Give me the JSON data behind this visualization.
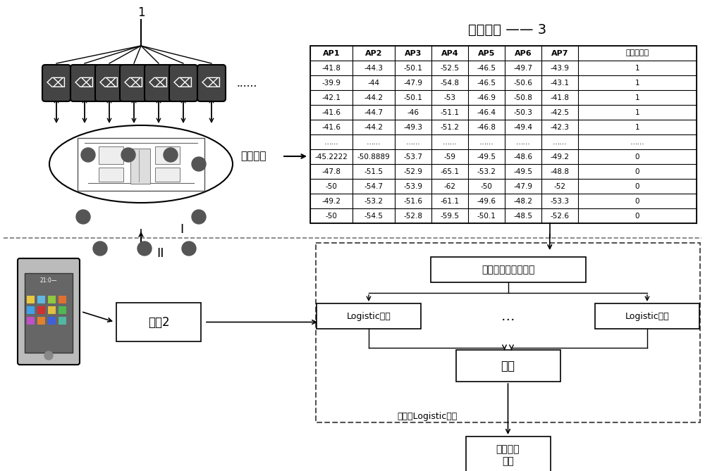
{
  "title": "无线电图 —— 3",
  "table_headers": [
    "AP1",
    "AP2",
    "AP3",
    "AP4",
    "AP5",
    "AP6",
    "AP7",
    "车内外状态"
  ],
  "table_rows": [
    [
      "-41.8",
      "-44.3",
      "-50.1",
      "-52.5",
      "-46.5",
      "-49.7",
      "-43.9",
      "1"
    ],
    [
      "-39.9",
      "-44",
      "-47.9",
      "-54.8",
      "-46.5",
      "-50.6",
      "-43.1",
      "1"
    ],
    [
      "-42.1",
      "-44.2",
      "-50.1",
      "-53",
      "-46.9",
      "-50.8",
      "-41.8",
      "1"
    ],
    [
      "-41.6",
      "-44.7",
      "-46",
      "-51.1",
      "-46.4",
      "-50.3",
      "-42.5",
      "1"
    ],
    [
      "-41.6",
      "-44.2",
      "-49.3",
      "-51.2",
      "-46.8",
      "-49.4",
      "-42.3",
      "1"
    ],
    [
      "……",
      "……",
      "……",
      "……",
      "……",
      "……",
      "……",
      "……"
    ],
    [
      "-45.2222",
      "-50.8889",
      "-53.7",
      "-59",
      "-49.5",
      "-48.6",
      "-49.2",
      "0"
    ],
    [
      "-47.8",
      "-51.5",
      "-52.9",
      "-65.1",
      "-53.2",
      "-49.5",
      "-48.8",
      "0"
    ],
    [
      "-50",
      "-54.7",
      "-53.9",
      "-62",
      "-50",
      "-47.9",
      "-52",
      "0"
    ],
    [
      "-49.2",
      "-53.2",
      "-51.6",
      "-61.1",
      "-49.6",
      "-48.2",
      "-53.3",
      "0"
    ],
    [
      "-50",
      "-54.5",
      "-52.8",
      "-59.5",
      "-50.1",
      "-48.5",
      "-52.6",
      "0"
    ]
  ],
  "label_I": "I",
  "label_II": "II",
  "label_1": "1",
  "label_shuju_caiji": "数据采集",
  "box_shuju2": "数据2",
  "box_shaixuan": "数据筛选，特征筛选",
  "box_logistic1": "Logistic回归",
  "box_dots": "…",
  "box_logistic2": "Logistic回归",
  "box_toupiao": "投票",
  "box_gaijin": "改进的Logistic回归",
  "box_result": "内外辨识\n结果",
  "bg_color": "#ffffff",
  "line_color": "#222222"
}
